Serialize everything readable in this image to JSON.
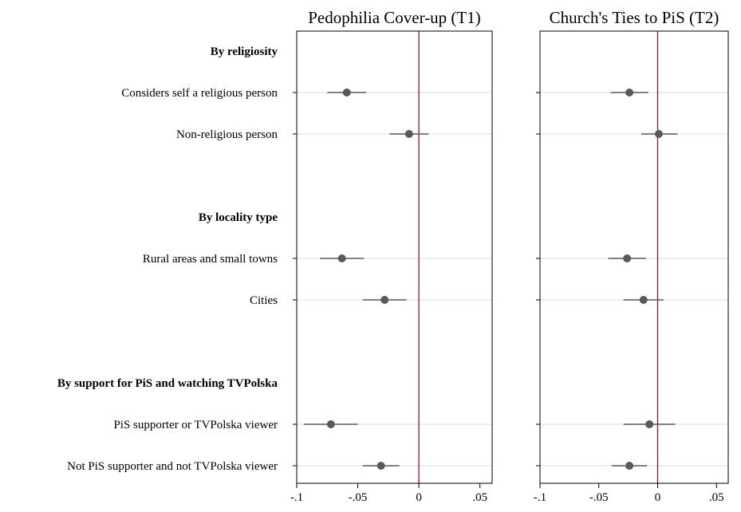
{
  "chart_data": {
    "type": "scatter",
    "xlim": [
      -0.1,
      0.06
    ],
    "x_ticks": [
      -0.1,
      -0.05,
      0,
      0.05
    ],
    "x_tick_labels": [
      "-.1",
      "-.05",
      "0",
      ".05"
    ],
    "reference_line": 0,
    "reference_color": "#8b1a1a",
    "marker_color": "#595959",
    "grid": "horizontal",
    "groups": [
      {
        "label": "By religiosity",
        "row": 0
      },
      {
        "label": "By locality type",
        "row": 4
      },
      {
        "label": "By support for PiS and watching TVPolska",
        "row": 8
      }
    ],
    "categories": [
      {
        "label": "Considers self a religious person",
        "row": 1
      },
      {
        "label": "Non-religious person",
        "row": 2
      },
      {
        "label": "Rural areas and small towns",
        "row": 5
      },
      {
        "label": "Cities",
        "row": 6
      },
      {
        "label": "PiS supporter or TVPolska viewer",
        "row": 9
      },
      {
        "label": "Not PiS supporter and not TVPolska viewer",
        "row": 10
      }
    ],
    "panels": [
      {
        "title": "Pedophilia Cover-up (T1)",
        "estimates": [
          -0.059,
          -0.008,
          -0.063,
          -0.028,
          -0.072,
          -0.031
        ],
        "ci_low": [
          -0.075,
          -0.024,
          -0.081,
          -0.046,
          -0.094,
          -0.046
        ],
        "ci_high": [
          -0.043,
          0.008,
          -0.045,
          -0.01,
          -0.05,
          -0.016
        ]
      },
      {
        "title": "Church's Ties to PiS (T2)",
        "estimates": [
          -0.024,
          0.001,
          -0.026,
          -0.012,
          -0.007,
          -0.024
        ],
        "ci_low": [
          -0.04,
          -0.014,
          -0.042,
          -0.029,
          -0.029,
          -0.039
        ],
        "ci_high": [
          -0.008,
          0.017,
          -0.01,
          0.005,
          0.015,
          -0.009
        ]
      }
    ]
  }
}
